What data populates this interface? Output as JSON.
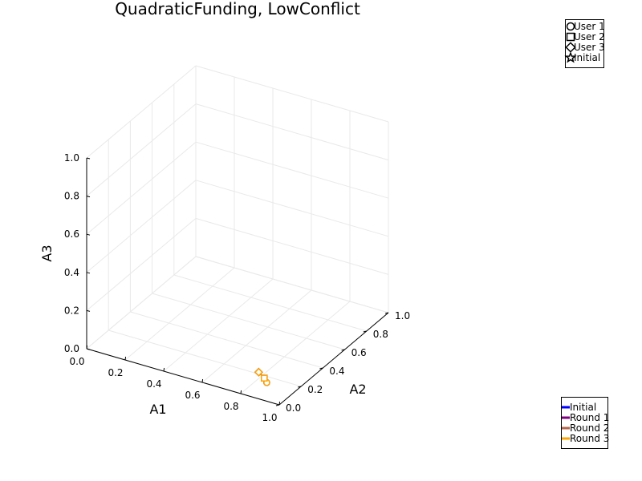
{
  "chart_data": {
    "type": "scatter",
    "projection": "3d",
    "title": "QuadraticFunding, LowConflict",
    "xlabel": "A1",
    "ylabel": "A2",
    "zlabel": "A3",
    "xlim": [
      0,
      1
    ],
    "ylim": [
      0,
      1
    ],
    "zlim": [
      0,
      1
    ],
    "x_ticks": [
      "0.0",
      "0.2",
      "0.4",
      "0.6",
      "0.8",
      "1.0"
    ],
    "y_ticks": [
      "0.0",
      "0.2",
      "0.4",
      "0.6",
      "0.8",
      "1.0"
    ],
    "z_ticks": [
      "0.0",
      "0.2",
      "0.4",
      "0.6",
      "0.8",
      "1.0"
    ],
    "grid": true,
    "legend_markers": {
      "placement": "top-right",
      "entries": [
        {
          "label": "User 1",
          "marker": "circle"
        },
        {
          "label": "User 2",
          "marker": "square"
        },
        {
          "label": "User 3",
          "marker": "diamond"
        },
        {
          "label": "Initial",
          "marker": "star"
        }
      ]
    },
    "legend_rounds": {
      "placement": "bottom-right",
      "entries": [
        {
          "label": "Initial",
          "color": "#0000ff"
        },
        {
          "label": "Round 1",
          "color": "#800080"
        },
        {
          "label": "Round 2",
          "color": "#b5654c"
        },
        {
          "label": "Round 3",
          "color": "#ffa500"
        }
      ]
    },
    "series": [
      {
        "name": "Initial",
        "color": "#0000ff",
        "points": [
          {
            "marker": "circle",
            "x": 0.85,
            "y": 0.15,
            "z": 0.0
          },
          {
            "marker": "square",
            "x": 0.82,
            "y": 0.18,
            "z": 0.0
          },
          {
            "marker": "diamond",
            "x": 0.78,
            "y": 0.2,
            "z": 0.01
          }
        ]
      },
      {
        "name": "Round 1",
        "color": "#800080",
        "points": [
          {
            "marker": "circle",
            "x": 0.85,
            "y": 0.15,
            "z": 0.0
          },
          {
            "marker": "square",
            "x": 0.82,
            "y": 0.18,
            "z": 0.0
          },
          {
            "marker": "diamond",
            "x": 0.78,
            "y": 0.2,
            "z": 0.01
          }
        ]
      },
      {
        "name": "Round 2",
        "color": "#b5654c",
        "points": [
          {
            "marker": "circle",
            "x": 0.85,
            "y": 0.15,
            "z": 0.0
          },
          {
            "marker": "square",
            "x": 0.82,
            "y": 0.18,
            "z": 0.0
          },
          {
            "marker": "diamond",
            "x": 0.78,
            "y": 0.2,
            "z": 0.01
          }
        ]
      },
      {
        "name": "Round 3",
        "color": "#ffa500",
        "points": [
          {
            "marker": "circle",
            "x": 0.85,
            "y": 0.15,
            "z": 0.0
          },
          {
            "marker": "square",
            "x": 0.82,
            "y": 0.18,
            "z": 0.0
          },
          {
            "marker": "diamond",
            "x": 0.78,
            "y": 0.2,
            "z": 0.01
          }
        ]
      }
    ]
  }
}
